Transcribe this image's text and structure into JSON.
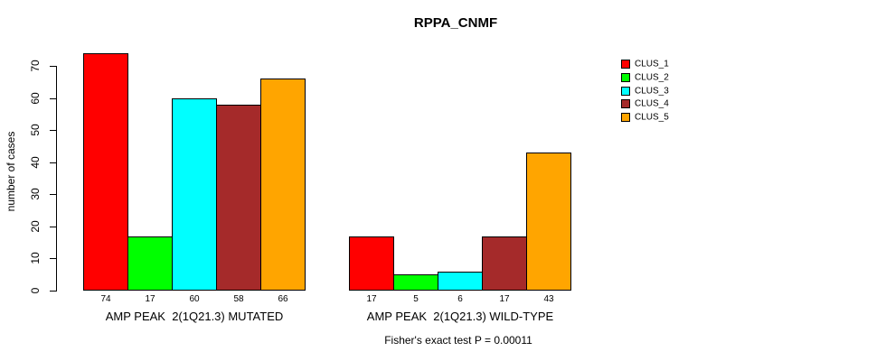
{
  "chart_data": {
    "type": "bar",
    "title": "RPPA_CNMF",
    "ylabel": "number of cases",
    "xlabel": "",
    "ylim": [
      0,
      70
    ],
    "yticks": [
      0,
      10,
      20,
      30,
      40,
      50,
      60,
      70
    ],
    "grid": false,
    "legend_position": "top-right",
    "bar_border_color": "#000000",
    "categories": [
      "AMP PEAK  2(1Q21.3) MUTATED",
      "AMP PEAK  2(1Q21.3) WILD-TYPE"
    ],
    "series": [
      {
        "name": "CLUS_1",
        "color": "#FF0000",
        "values": [
          74,
          17
        ]
      },
      {
        "name": "CLUS_2",
        "color": "#00FF00",
        "values": [
          17,
          5
        ]
      },
      {
        "name": "CLUS_3",
        "color": "#00FFFF",
        "values": [
          60,
          6
        ]
      },
      {
        "name": "CLUS_4",
        "color": "#A52A2A",
        "values": [
          58,
          17
        ]
      },
      {
        "name": "CLUS_5",
        "color": "#FFA500",
        "values": [
          66,
          43
        ]
      }
    ],
    "annotation": "Fisher's exact test P = 0.00011"
  }
}
